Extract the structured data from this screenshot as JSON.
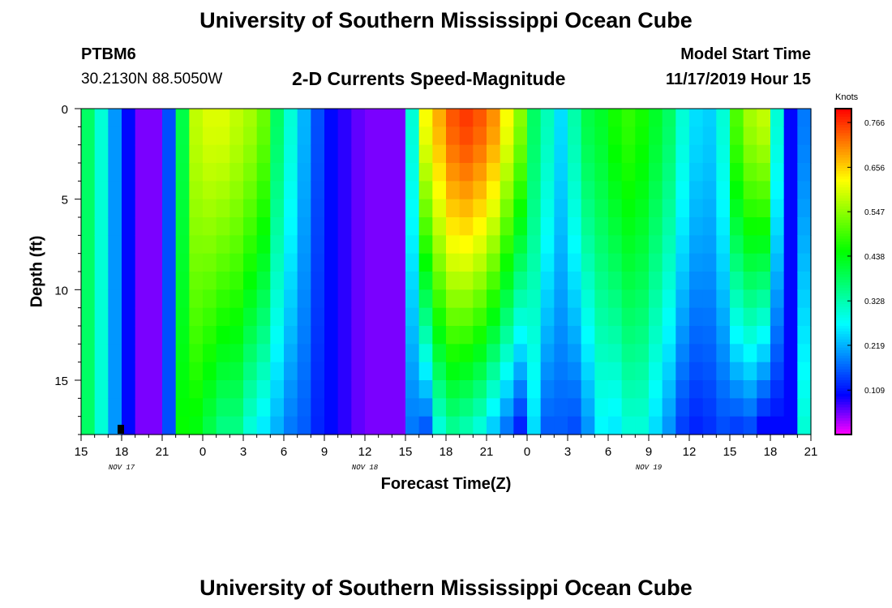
{
  "header": {
    "title": "University of Southern Mississippi Ocean Cube",
    "station": "PTBM6",
    "location": "30.2130N 88.5050W",
    "subtitle": "2-D Currents Speed-Magnitude",
    "start_label": "Model Start Time",
    "start_value": "11/17/2019 Hour 15"
  },
  "footer": {
    "title": "University of Southern Mississippi Ocean Cube"
  },
  "colorbar": {
    "title": "Knots",
    "ticks": [
      "0.766",
      "0.656",
      "0.547",
      "0.438",
      "0.328",
      "0.219",
      "0.109"
    ]
  },
  "chart_data": {
    "type": "heatmap",
    "title": "2-D Currents Speed-Magnitude",
    "xlabel": "Forecast Time(Z)",
    "ylabel": "Depth (ft)",
    "units": "Knots",
    "color_range": [
      0.0,
      0.8
    ],
    "x_tick_labels": [
      "15",
      "18",
      "21",
      "0",
      "3",
      "6",
      "9",
      "12",
      "15",
      "18",
      "21",
      "0",
      "3",
      "6",
      "9",
      "12",
      "15",
      "18",
      "21"
    ],
    "date_labels": [
      {
        "label": "NOV 17",
        "at_tick": 1
      },
      {
        "label": "NOV 18",
        "at_tick": 7
      },
      {
        "label": "NOV 19",
        "at_tick": 14
      }
    ],
    "y_ticks": [
      0,
      5,
      10,
      15
    ],
    "ylim": [
      0,
      18
    ],
    "x_range_hours": [
      0,
      54
    ],
    "depth_rows": 18,
    "time_columns": 54,
    "profiles": [
      [
        0.38,
        0.38
      ],
      [
        0.3,
        0.3
      ],
      [
        0.2,
        0.2
      ],
      [
        0.1,
        0.1
      ],
      [
        0.05,
        0.05
      ],
      [
        0.05,
        0.05
      ],
      [
        0.15,
        0.15
      ],
      [
        0.4,
        0.45
      ],
      [
        0.58,
        0.44
      ],
      [
        0.6,
        0.4
      ],
      [
        0.6,
        0.36
      ],
      [
        0.58,
        0.36
      ],
      [
        0.56,
        0.3
      ],
      [
        0.52,
        0.26
      ],
      [
        0.38,
        0.22
      ],
      [
        0.3,
        0.18
      ],
      [
        0.22,
        0.16
      ],
      [
        0.15,
        0.12
      ],
      [
        0.1,
        0.1
      ],
      [
        0.08,
        0.08
      ],
      [
        0.06,
        0.06
      ],
      [
        0.05,
        0.05
      ],
      [
        0.05,
        0.05
      ],
      [
        0.05,
        0.05
      ],
      [
        0.3,
        0.18
      ],
      [
        0.62,
        0.16
      ],
      [
        0.68,
        0.3
      ],
      [
        0.74,
        0.35
      ],
      [
        0.76,
        0.33
      ],
      [
        0.74,
        0.3
      ],
      [
        0.7,
        0.24
      ],
      [
        0.62,
        0.18
      ],
      [
        0.54,
        0.12
      ],
      [
        0.38,
        0.25
      ],
      [
        0.32,
        0.16
      ],
      [
        0.25,
        0.16
      ],
      [
        0.33,
        0.15
      ],
      [
        0.4,
        0.2
      ],
      [
        0.42,
        0.27
      ],
      [
        0.46,
        0.26
      ],
      [
        0.48,
        0.3
      ],
      [
        0.46,
        0.3
      ],
      [
        0.42,
        0.25
      ],
      [
        0.38,
        0.2
      ],
      [
        0.3,
        0.14
      ],
      [
        0.25,
        0.12
      ],
      [
        0.24,
        0.13
      ],
      [
        0.3,
        0.15
      ],
      [
        0.5,
        0.14
      ],
      [
        0.56,
        0.15
      ],
      [
        0.58,
        0.1
      ],
      [
        0.3,
        0.1
      ],
      [
        0.1,
        0.1
      ],
      [
        0.18,
        0.3
      ]
    ]
  }
}
